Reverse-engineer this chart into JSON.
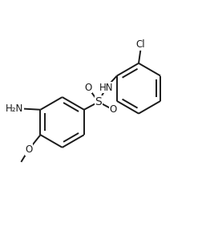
{
  "bg_color": "#ffffff",
  "line_color": "#1a1a1a",
  "line_width": 1.4,
  "figsize": [
    2.53,
    2.88
  ],
  "dpi": 100,
  "xlim": [
    0.0,
    1.0
  ],
  "ylim": [
    0.0,
    1.0
  ]
}
